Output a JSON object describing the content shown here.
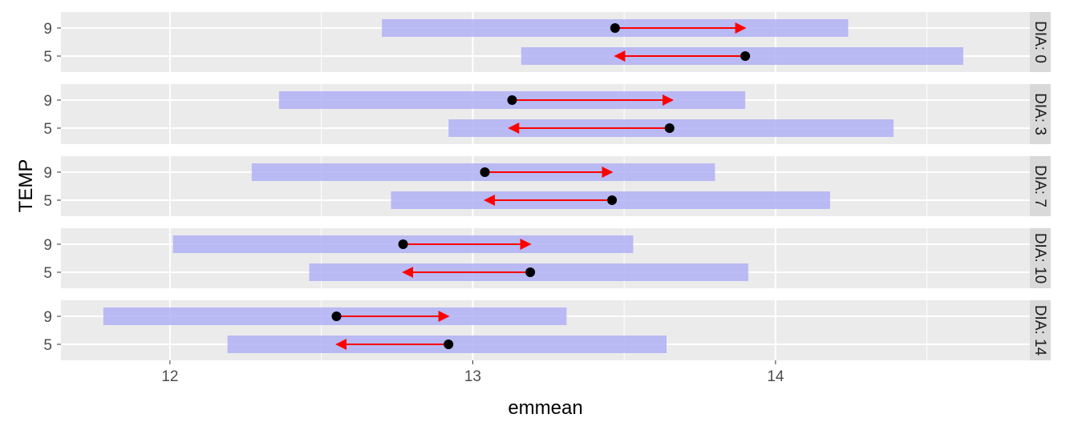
{
  "chart_data": {
    "type": "interval",
    "xlabel": "emmean",
    "ylabel": "TEMP",
    "xlim": [
      11.64,
      14.84
    ],
    "x_ticks": [
      12,
      13,
      14
    ],
    "y_categories": [
      "9",
      "5"
    ],
    "panels": [
      {
        "label": "DIA: 0",
        "rows": [
          {
            "temp": "9",
            "emmean": 13.47,
            "ci": [
              12.7,
              14.24
            ],
            "arrow_to": 13.9
          },
          {
            "temp": "5",
            "emmean": 13.9,
            "ci": [
              13.16,
              14.62
            ],
            "arrow_to": 13.47
          }
        ]
      },
      {
        "label": "DIA: 3",
        "rows": [
          {
            "temp": "9",
            "emmean": 13.13,
            "ci": [
              12.36,
              13.9
            ],
            "arrow_to": 13.66
          },
          {
            "temp": "5",
            "emmean": 13.65,
            "ci": [
              12.92,
              14.39
            ],
            "arrow_to": 13.12
          }
        ]
      },
      {
        "label": "DIA: 7",
        "rows": [
          {
            "temp": "9",
            "emmean": 13.04,
            "ci": [
              12.27,
              13.8
            ],
            "arrow_to": 13.46
          },
          {
            "temp": "5",
            "emmean": 13.46,
            "ci": [
              12.73,
              14.18
            ],
            "arrow_to": 13.04
          }
        ]
      },
      {
        "label": "DIA: 10",
        "rows": [
          {
            "temp": "9",
            "emmean": 12.77,
            "ci": [
              12.01,
              13.53
            ],
            "arrow_to": 13.19
          },
          {
            "temp": "5",
            "emmean": 13.19,
            "ci": [
              12.46,
              13.91
            ],
            "arrow_to": 12.77
          }
        ]
      },
      {
        "label": "DIA: 14",
        "rows": [
          {
            "temp": "9",
            "emmean": 12.55,
            "ci": [
              11.78,
              13.31
            ],
            "arrow_to": 12.92
          },
          {
            "temp": "5",
            "emmean": 12.92,
            "ci": [
              12.19,
              13.64
            ],
            "arrow_to": 12.55
          }
        ]
      }
    ],
    "colors": {
      "panel_bg": "#ebebeb",
      "strip_bg": "#d9d9d9",
      "grid": "#ffffff",
      "ci_bar": "#b0b0f4",
      "arrow": "#ff0000",
      "point": "#000000"
    }
  }
}
